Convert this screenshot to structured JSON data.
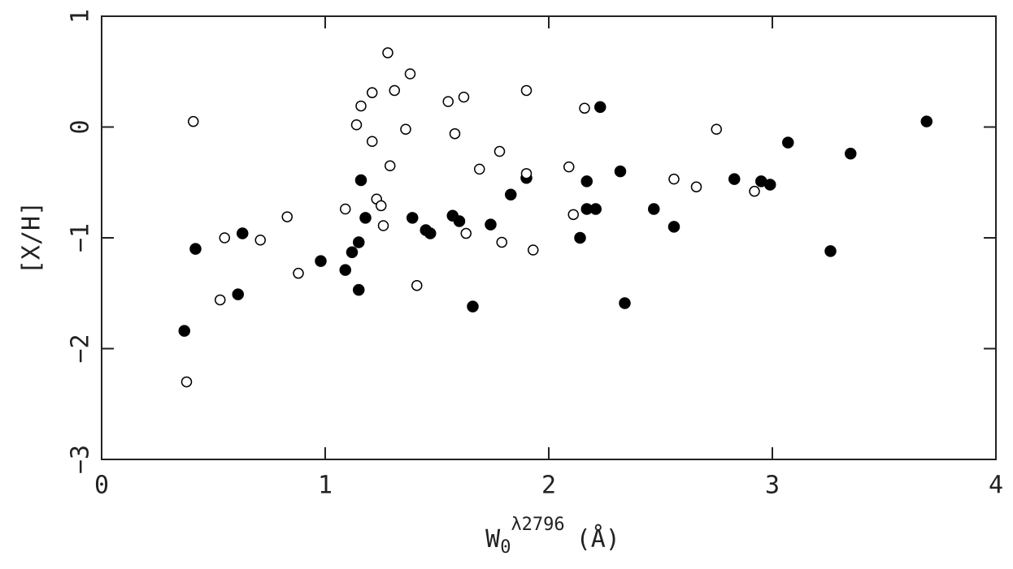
{
  "chart_data": {
    "type": "scatter",
    "xlabel": {
      "base": "W",
      "sub": "0",
      "sup": "λ2796",
      "unit": "(Å)"
    },
    "ylabel": "[X/H]",
    "xlim": [
      0,
      4
    ],
    "xticks": [
      0,
      1,
      2,
      3,
      4
    ],
    "ylim": [
      -3,
      1
    ],
    "yticks": [
      {
        "value": -3,
        "label": "−3"
      },
      {
        "value": -2,
        "label": "−2"
      },
      {
        "value": -1,
        "label": "−1"
      },
      0,
      1
    ],
    "grid": false,
    "series": [
      {
        "marker": "filled",
        "color": "#000000",
        "x": [
          0.37,
          0.42,
          0.63,
          0.61,
          0.98,
          1.09,
          1.12,
          1.15,
          1.16,
          1.18,
          1.15,
          1.39,
          1.45,
          1.47,
          1.57,
          1.6,
          1.66,
          1.74,
          1.83,
          1.9,
          2.14,
          2.17,
          2.17,
          2.21,
          2.23,
          2.32,
          2.34,
          2.47,
          2.56,
          2.83,
          2.95,
          2.99,
          3.07,
          3.26,
          3.35,
          3.69
        ],
        "y": [
          -1.84,
          -1.1,
          -0.96,
          -1.51,
          -1.21,
          -1.29,
          -1.13,
          -1.04,
          -0.48,
          -0.82,
          -1.47,
          -0.82,
          -0.93,
          -0.96,
          -0.8,
          -0.85,
          -1.62,
          -0.88,
          -0.61,
          -0.46,
          -1.0,
          -0.49,
          -0.74,
          -0.74,
          0.18,
          -0.4,
          -1.59,
          -0.74,
          -0.9,
          -0.47,
          -0.49,
          -0.52,
          -0.14,
          -1.12,
          -0.24,
          0.05
        ]
      },
      {
        "marker": "open",
        "color": "#000000",
        "x": [
          0.41,
          0.38,
          0.55,
          0.53,
          0.71,
          0.83,
          0.88,
          1.09,
          1.14,
          1.16,
          1.21,
          1.21,
          1.23,
          1.25,
          1.26,
          1.28,
          1.29,
          1.31,
          1.36,
          1.38,
          1.41,
          1.55,
          1.58,
          1.62,
          1.63,
          1.69,
          1.78,
          1.79,
          1.9,
          1.9,
          1.93,
          2.09,
          2.11,
          2.16,
          2.56,
          2.66,
          2.75,
          2.92
        ],
        "y": [
          0.05,
          -2.3,
          -1.0,
          -1.56,
          -1.02,
          -0.81,
          -1.32,
          -0.74,
          0.02,
          0.19,
          -0.13,
          0.31,
          -0.65,
          -0.71,
          -0.89,
          0.67,
          -0.35,
          0.33,
          -0.02,
          0.48,
          -1.43,
          0.23,
          -0.06,
          0.27,
          -0.96,
          -0.38,
          -0.22,
          -1.04,
          -0.42,
          0.33,
          -1.11,
          -0.36,
          -0.79,
          0.17,
          -0.47,
          -0.54,
          -0.02,
          -0.58
        ]
      }
    ]
  }
}
